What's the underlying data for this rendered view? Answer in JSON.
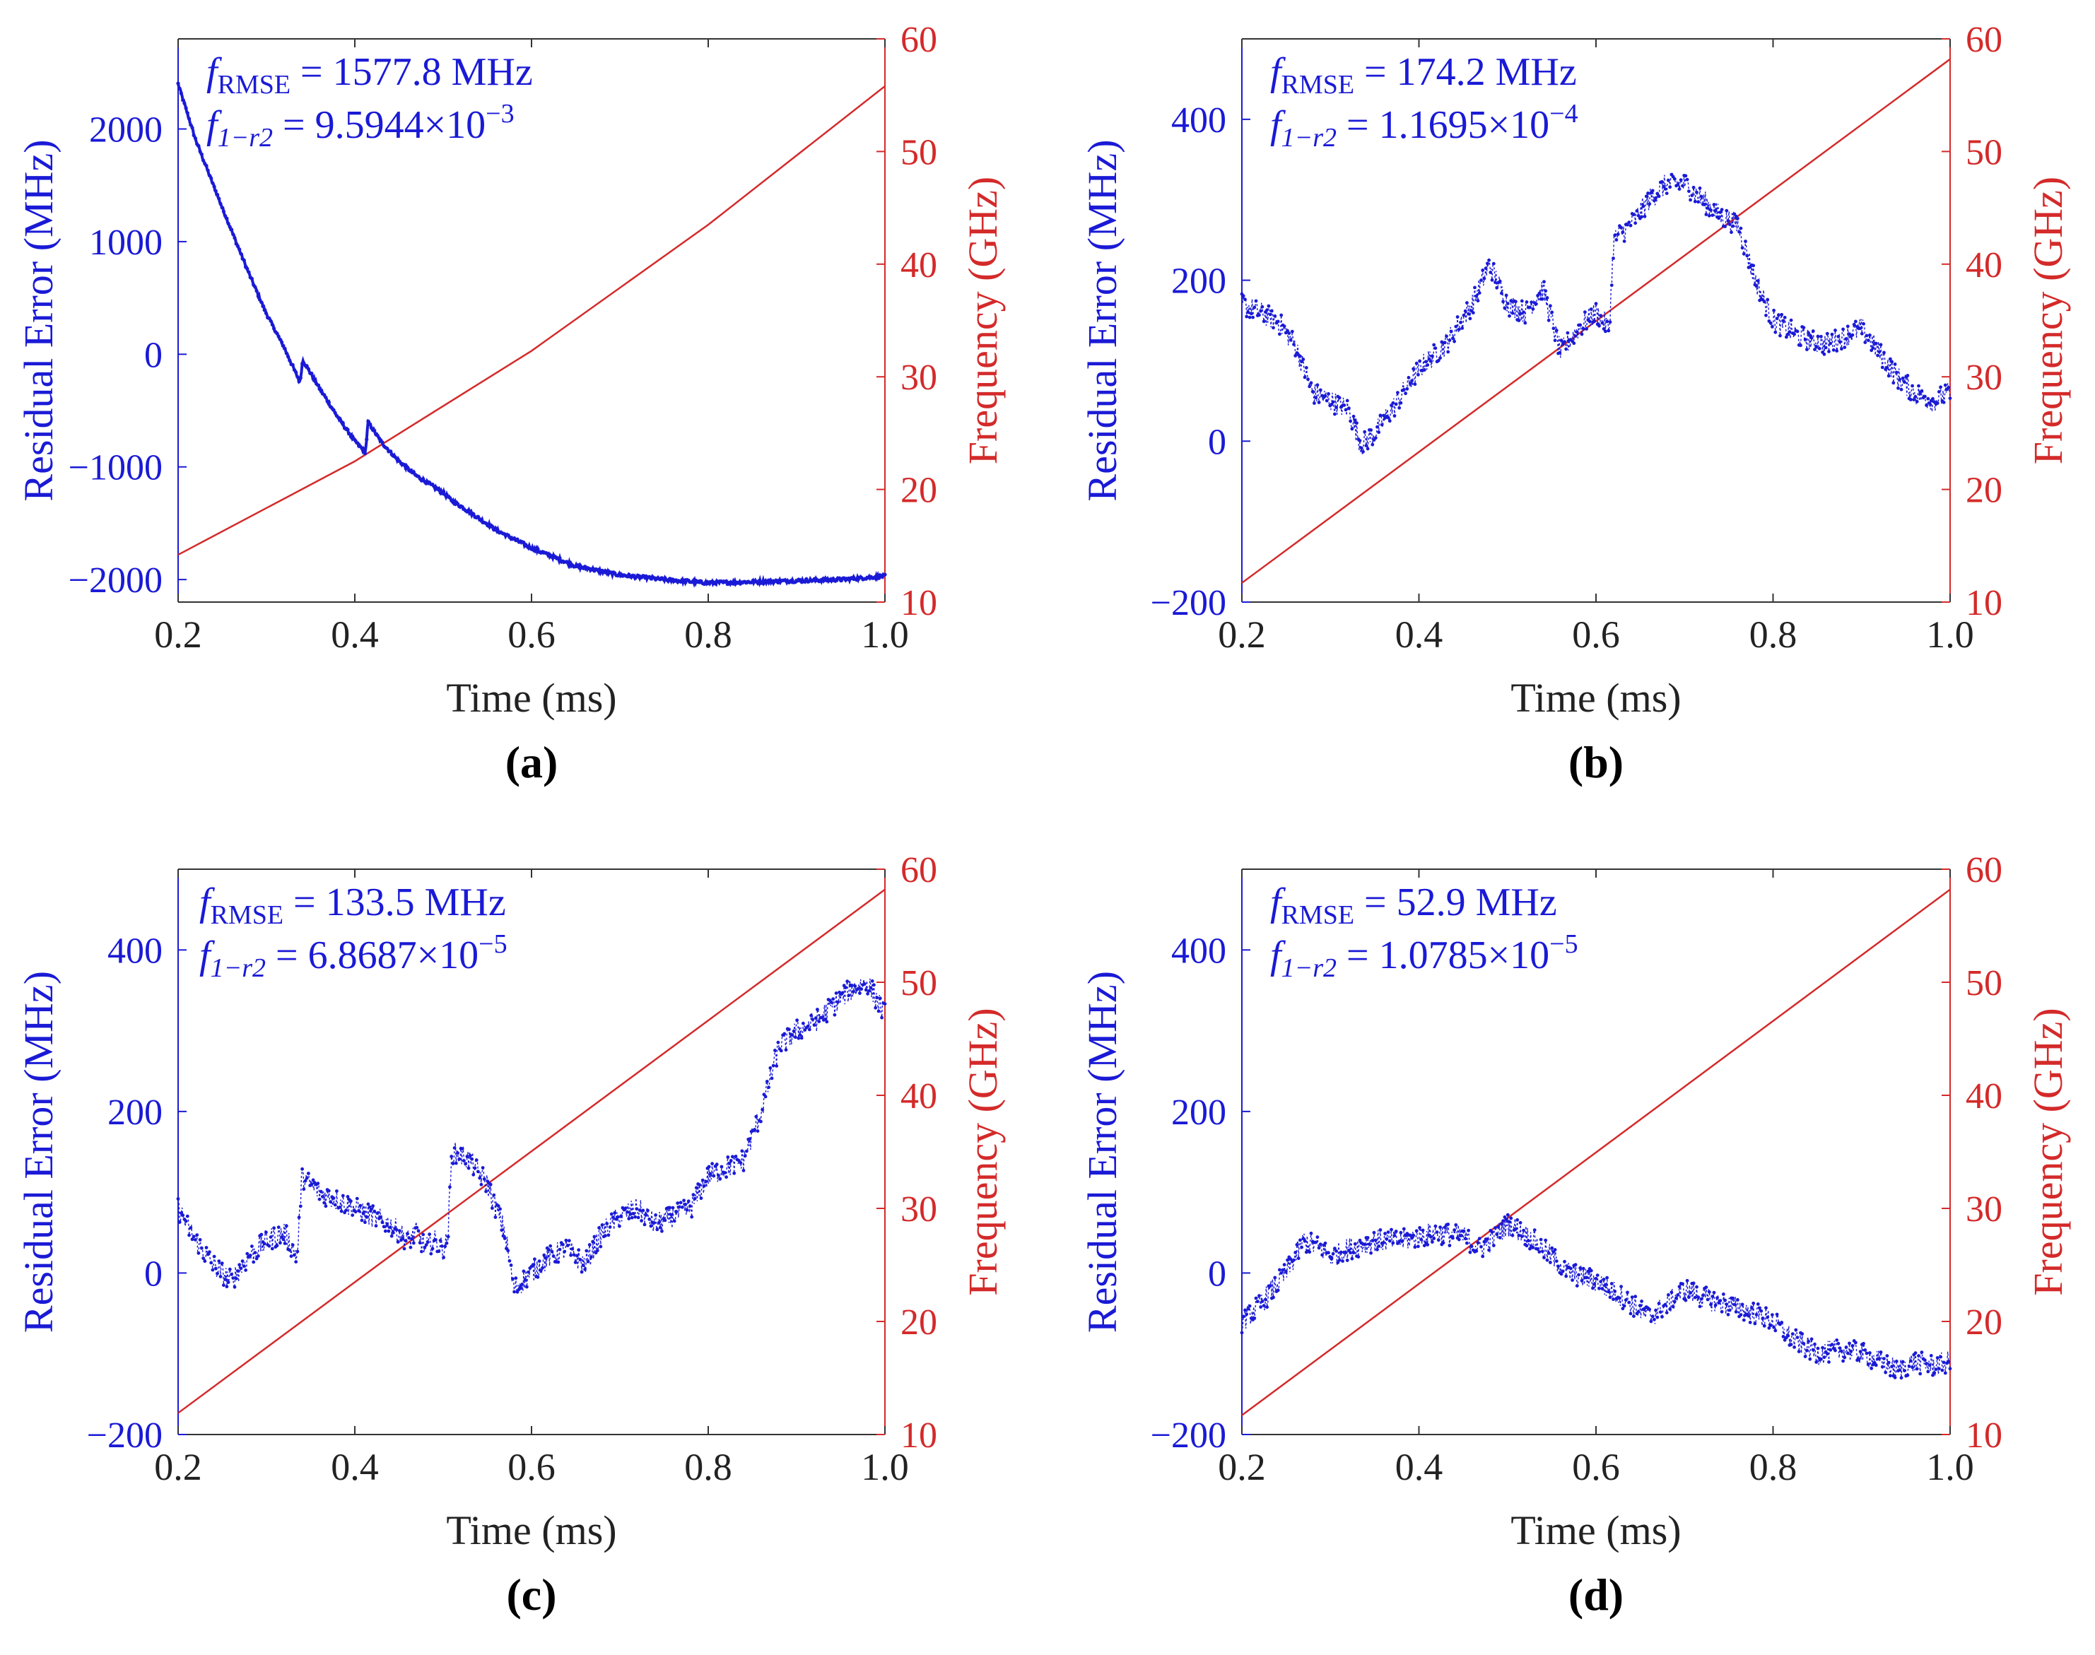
{
  "figure": {
    "panel_labels": [
      "(a)",
      "(b)",
      "(c)",
      "(d)"
    ]
  },
  "colors": {
    "residual": "#1a1ad6",
    "frequency": "#d42a2a",
    "axis_text": "#222222"
  },
  "chart_data": [
    {
      "type": "line",
      "label": "(a)",
      "xlabel": "Time (ms)",
      "ylabel": "Residual Error (MHz)",
      "y2label": "Frequency (GHz)",
      "xlim": [
        0.2,
        1.0
      ],
      "ylim": [
        -2200,
        2800
      ],
      "y2lim": [
        10,
        60
      ],
      "xticks": [
        "0.2",
        "0.4",
        "0.6",
        "0.8",
        "1.0"
      ],
      "yticks": [
        2000,
        1000,
        0,
        -1000,
        -2000
      ],
      "ytick_labels": [
        "2000",
        "1000",
        "0",
        "−1000",
        "−2000"
      ],
      "y2ticks": [
        "60",
        "50",
        "40",
        "30",
        "20",
        "10"
      ],
      "annotation": {
        "rmse_prefix": "f",
        "rmse_sub": "RMSE",
        "rmse_rest": " = 1577.8 MHz",
        "r2_prefix": "f",
        "r2_sub": "1−r2",
        "r2_rest": " = 9.5944×10",
        "r2_exp": "−3"
      },
      "series": [
        {
          "name": "Residual Error",
          "axis": "left",
          "x": [
            0.2,
            0.22,
            0.25,
            0.28,
            0.3,
            0.32,
            0.338,
            0.341,
            0.36,
            0.38,
            0.4,
            0.412,
            0.415,
            0.43,
            0.45,
            0.47,
            0.5,
            0.51,
            0.53,
            0.56,
            0.6,
            0.65,
            0.7,
            0.75,
            0.8,
            0.85,
            0.9,
            0.95,
            1.0
          ],
          "values": [
            2400,
            1900,
            1300,
            720,
            360,
            60,
            -250,
            -50,
            -300,
            -550,
            -770,
            -870,
            -600,
            -780,
            -950,
            -1080,
            -1230,
            -1300,
            -1400,
            -1560,
            -1720,
            -1880,
            -1960,
            -2000,
            -2030,
            -2020,
            -2010,
            -2000,
            -1970
          ]
        },
        {
          "name": "Frequency",
          "axis": "right",
          "x": [
            0.2,
            0.4,
            0.6,
            0.8,
            1.0
          ],
          "values": [
            14.2,
            22.5,
            32.3,
            43.5,
            55.8
          ]
        }
      ]
    },
    {
      "type": "line",
      "label": "(b)",
      "xlabel": "Time (ms)",
      "ylabel": "Residual Error (MHz)",
      "y2label": "Frequency (GHz)",
      "xlim": [
        0.2,
        1.0
      ],
      "ylim": [
        -200,
        500
      ],
      "y2lim": [
        10,
        60
      ],
      "xticks": [
        "0.2",
        "0.4",
        "0.6",
        "0.8",
        "1.0"
      ],
      "yticks": [
        400,
        200,
        0,
        -200
      ],
      "ytick_labels": [
        "400",
        "200",
        "0",
        "−200"
      ],
      "y2ticks": [
        "60",
        "50",
        "40",
        "30",
        "20",
        "10"
      ],
      "annotation": {
        "rmse_prefix": "f",
        "rmse_sub": "RMSE",
        "rmse_rest": " = 174.2 MHz",
        "r2_prefix": "f",
        "r2_sub": "1−r2",
        "r2_rest": " = 1.1695×10",
        "r2_exp": "−4"
      },
      "series": [
        {
          "name": "Residual Error",
          "axis": "left",
          "x": [
            0.2,
            0.22,
            0.24,
            0.26,
            0.28,
            0.3,
            0.32,
            0.335,
            0.35,
            0.37,
            0.4,
            0.43,
            0.46,
            0.48,
            0.5,
            0.52,
            0.54,
            0.56,
            0.58,
            0.6,
            0.615,
            0.62,
            0.64,
            0.66,
            0.68,
            0.7,
            0.72,
            0.74,
            0.76,
            0.78,
            0.8,
            0.83,
            0.86,
            0.88,
            0.9,
            0.92,
            0.94,
            0.96,
            0.98,
            1.0
          ],
          "values": [
            170,
            160,
            150,
            120,
            60,
            50,
            40,
            -5,
            10,
            40,
            90,
            120,
            170,
            220,
            170,
            160,
            190,
            110,
            140,
            160,
            140,
            250,
            270,
            300,
            320,
            320,
            300,
            280,
            270,
            200,
            150,
            130,
            120,
            130,
            140,
            110,
            80,
            60,
            50,
            60
          ]
        },
        {
          "name": "Frequency",
          "axis": "right",
          "x": [
            0.2,
            1.0
          ],
          "values": [
            11.7,
            58.2
          ]
        }
      ]
    },
    {
      "type": "line",
      "label": "(c)",
      "xlabel": "Time (ms)",
      "ylabel": "Residual Error (MHz)",
      "y2label": "Frequency (GHz)",
      "xlim": [
        0.2,
        1.0
      ],
      "ylim": [
        -200,
        500
      ],
      "y2lim": [
        10,
        60
      ],
      "xticks": [
        "0.2",
        "0.4",
        "0.6",
        "0.8",
        "1.0"
      ],
      "yticks": [
        400,
        200,
        0,
        -200
      ],
      "ytick_labels": [
        "400",
        "200",
        "0",
        "−200"
      ],
      "y2ticks": [
        "60",
        "50",
        "40",
        "30",
        "20",
        "10"
      ],
      "annotation": {
        "rmse_prefix": "f",
        "rmse_sub": "RMSE",
        "rmse_rest": " = 133.5 MHz",
        "r2_prefix": "f",
        "r2_sub": "1−r2",
        "r2_rest": " = 6.8687×10",
        "r2_exp": "−5"
      },
      "series": [
        {
          "name": "Residual Error",
          "axis": "left",
          "x": [
            0.2,
            0.22,
            0.24,
            0.26,
            0.28,
            0.3,
            0.32,
            0.335,
            0.34,
            0.36,
            0.38,
            0.4,
            0.42,
            0.44,
            0.46,
            0.47,
            0.48,
            0.49,
            0.5,
            0.505,
            0.51,
            0.53,
            0.55,
            0.57,
            0.58,
            0.6,
            0.62,
            0.64,
            0.66,
            0.68,
            0.7,
            0.72,
            0.74,
            0.76,
            0.78,
            0.8,
            0.82,
            0.84,
            0.86,
            0.88,
            0.9,
            0.92,
            0.94,
            0.96,
            0.98,
            1.0
          ],
          "values": [
            80,
            40,
            10,
            -10,
            20,
            40,
            50,
            20,
            120,
            100,
            90,
            80,
            70,
            60,
            40,
            50,
            30,
            40,
            30,
            40,
            150,
            140,
            110,
            50,
            -20,
            0,
            20,
            30,
            10,
            50,
            70,
            80,
            60,
            70,
            80,
            120,
            130,
            140,
            200,
            280,
            300,
            310,
            330,
            350,
            360,
            320
          ]
        },
        {
          "name": "Frequency",
          "axis": "right",
          "x": [
            0.2,
            1.0
          ],
          "values": [
            11.9,
            58.2
          ]
        }
      ]
    },
    {
      "type": "line",
      "label": "(d)",
      "xlabel": "Time (ms)",
      "ylabel": "Residual Error (MHz)",
      "y2label": "Frequency (GHz)",
      "xlim": [
        0.2,
        1.0
      ],
      "ylim": [
        -200,
        500
      ],
      "y2lim": [
        10,
        60
      ],
      "xticks": [
        "0.2",
        "0.4",
        "0.6",
        "0.8",
        "1.0"
      ],
      "yticks": [
        400,
        200,
        0,
        -200
      ],
      "ytick_labels": [
        "400",
        "200",
        "0",
        "−200"
      ],
      "y2ticks": [
        "60",
        "50",
        "40",
        "30",
        "20",
        "10"
      ],
      "annotation": {
        "rmse_prefix": "f",
        "rmse_sub": "RMSE",
        "rmse_rest": " = 52.9 MHz",
        "r2_prefix": "f",
        "r2_sub": "1−r2",
        "r2_rest": " = 1.0785×10",
        "r2_exp": "−5"
      },
      "series": [
        {
          "name": "Residual Error",
          "axis": "left",
          "x": [
            0.2,
            0.22,
            0.25,
            0.27,
            0.29,
            0.3,
            0.32,
            0.35,
            0.38,
            0.4,
            0.42,
            0.45,
            0.47,
            0.49,
            0.5,
            0.51,
            0.53,
            0.55,
            0.57,
            0.6,
            0.63,
            0.66,
            0.68,
            0.7,
            0.72,
            0.75,
            0.78,
            0.8,
            0.82,
            0.85,
            0.88,
            0.9,
            0.92,
            0.94,
            0.96,
            0.98,
            1.0
          ],
          "values": [
            -60,
            -40,
            0,
            40,
            30,
            20,
            30,
            40,
            40,
            45,
            50,
            45,
            30,
            50,
            60,
            55,
            40,
            20,
            0,
            -10,
            -30,
            -55,
            -40,
            -20,
            -30,
            -40,
            -50,
            -60,
            -80,
            -100,
            -95,
            -100,
            -110,
            -120,
            -110,
            -115,
            -110
          ]
        },
        {
          "name": "Frequency",
          "axis": "right",
          "x": [
            0.2,
            1.0
          ],
          "values": [
            11.7,
            58.2
          ]
        }
      ]
    }
  ]
}
